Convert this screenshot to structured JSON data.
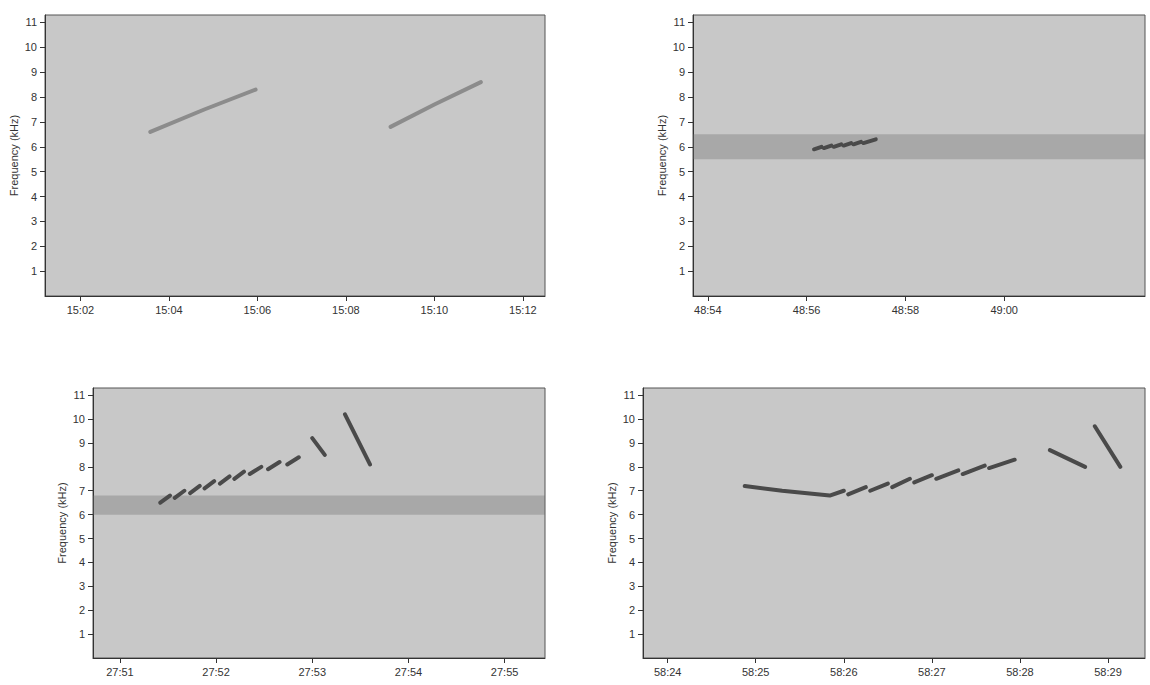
{
  "chart_data": [
    {
      "type": "spectrogram",
      "y_label": "Frequency (kHz)",
      "color": "#8c8c8c",
      "grid": false,
      "x": [
        903.58,
        904.8,
        905.96,
        null,
        909.01,
        910.0,
        911.05
      ],
      "values": [
        6.6,
        7.5,
        8.3,
        null,
        6.8,
        7.7,
        8.6
      ],
      "xlim": [
        901.2,
        912.5
      ],
      "xticks": [
        {
          "value": 902,
          "label": "15:02"
        },
        {
          "value": 904,
          "label": "15:04"
        },
        {
          "value": 906,
          "label": "15:06"
        },
        {
          "value": 908,
          "label": "15:08"
        },
        {
          "value": 910,
          "label": "15:10"
        },
        {
          "value": 912,
          "label": "15:12"
        }
      ],
      "ylim": [
        0,
        11.3
      ],
      "yticks": [
        1,
        2,
        3,
        4,
        5,
        6,
        7,
        8,
        9,
        10,
        11
      ]
    },
    {
      "type": "spectrogram",
      "y_label": "Frequency (kHz)",
      "color": "#4a4a4a",
      "grid": false,
      "band": [
        5.5,
        6.5
      ],
      "x": [
        2936.15,
        2936.3,
        null,
        2936.35,
        2936.5,
        null,
        2936.55,
        2936.7,
        null,
        2936.75,
        2936.9,
        null,
        2936.95,
        2937.1,
        null,
        2937.15,
        2937.4
      ],
      "values": [
        5.9,
        6.0,
        null,
        5.95,
        6.05,
        null,
        6.0,
        6.1,
        null,
        6.05,
        6.15,
        null,
        6.1,
        6.2,
        null,
        6.15,
        6.3
      ],
      "xlim": [
        2933.7,
        2942.85
      ],
      "xticks": [
        {
          "value": 2934,
          "label": "48:54"
        },
        {
          "value": 2936,
          "label": "48:56"
        },
        {
          "value": 2938,
          "label": "48:58"
        },
        {
          "value": 2940,
          "label": "49:00"
        }
      ],
      "ylim": [
        0,
        11.3
      ],
      "yticks": [
        1,
        2,
        3,
        4,
        5,
        6,
        7,
        8,
        9,
        10,
        11
      ]
    },
    {
      "type": "spectrogram",
      "y_label": "Frequency (kHz)",
      "color": "#4a4a4a",
      "grid": false,
      "band": [
        6.0,
        6.8
      ],
      "x": [
        1671.42,
        1671.52,
        null,
        1671.57,
        1671.67,
        null,
        1671.73,
        1671.83,
        null,
        1671.88,
        1671.98,
        null,
        1672.04,
        1672.14,
        null,
        1672.19,
        1672.29,
        null,
        1672.35,
        1672.47,
        null,
        1672.54,
        1672.66,
        null,
        1672.74,
        1672.86,
        null,
        1673.0,
        1673.13,
        null,
        1673.34,
        1673.6
      ],
      "values": [
        6.5,
        6.8,
        null,
        6.7,
        7.0,
        null,
        6.9,
        7.2,
        null,
        7.1,
        7.4,
        null,
        7.3,
        7.6,
        null,
        7.5,
        7.8,
        null,
        7.7,
        8.0,
        null,
        7.9,
        8.2,
        null,
        8.1,
        8.4,
        null,
        9.2,
        8.5,
        null,
        10.2,
        8.1
      ],
      "xlim": [
        1670.72,
        1675.42
      ],
      "xticks": [
        {
          "value": 1671,
          "label": "27:51"
        },
        {
          "value": 1672,
          "label": "27:52"
        },
        {
          "value": 1673,
          "label": "27:53"
        },
        {
          "value": 1674,
          "label": "27:54"
        },
        {
          "value": 1675,
          "label": "27:55"
        }
      ],
      "ylim": [
        0,
        11.3
      ],
      "yticks": [
        1,
        2,
        3,
        4,
        5,
        6,
        7,
        8,
        9,
        10,
        11
      ]
    },
    {
      "type": "spectrogram",
      "y_label": "Frequency (kHz)",
      "color": "#4a4a4a",
      "grid": false,
      "x": [
        3504.875,
        3505.3,
        3505.84,
        null,
        3505.84,
        3506.0,
        null,
        3506.05,
        3506.25,
        null,
        3506.3,
        3506.5,
        null,
        3506.55,
        3506.75,
        null,
        3506.8,
        3507.0,
        null,
        3507.05,
        3507.3,
        null,
        3507.35,
        3507.6,
        null,
        3507.65,
        3507.94,
        null,
        3508.34,
        3508.74,
        null,
        3508.85,
        3509.14
      ],
      "values": [
        7.2,
        7.0,
        6.8,
        null,
        6.8,
        7.0,
        null,
        6.85,
        7.15,
        null,
        7.0,
        7.3,
        null,
        7.15,
        7.5,
        null,
        7.35,
        7.65,
        null,
        7.5,
        7.85,
        null,
        7.7,
        8.05,
        null,
        7.95,
        8.3,
        null,
        8.7,
        8.0,
        null,
        9.7,
        8.0
      ],
      "xlim": [
        3503.72,
        3509.42
      ],
      "xticks": [
        {
          "value": 3504,
          "label": "58:24"
        },
        {
          "value": 3505,
          "label": "58:25"
        },
        {
          "value": 3506,
          "label": "58:26"
        },
        {
          "value": 3507,
          "label": "58:27"
        },
        {
          "value": 3508,
          "label": "58:28"
        },
        {
          "value": 3509,
          "label": "58:29"
        }
      ],
      "ylim": [
        0,
        11.3
      ],
      "yticks": [
        1,
        2,
        3,
        4,
        5,
        6,
        7,
        8,
        9,
        10,
        11
      ]
    }
  ]
}
